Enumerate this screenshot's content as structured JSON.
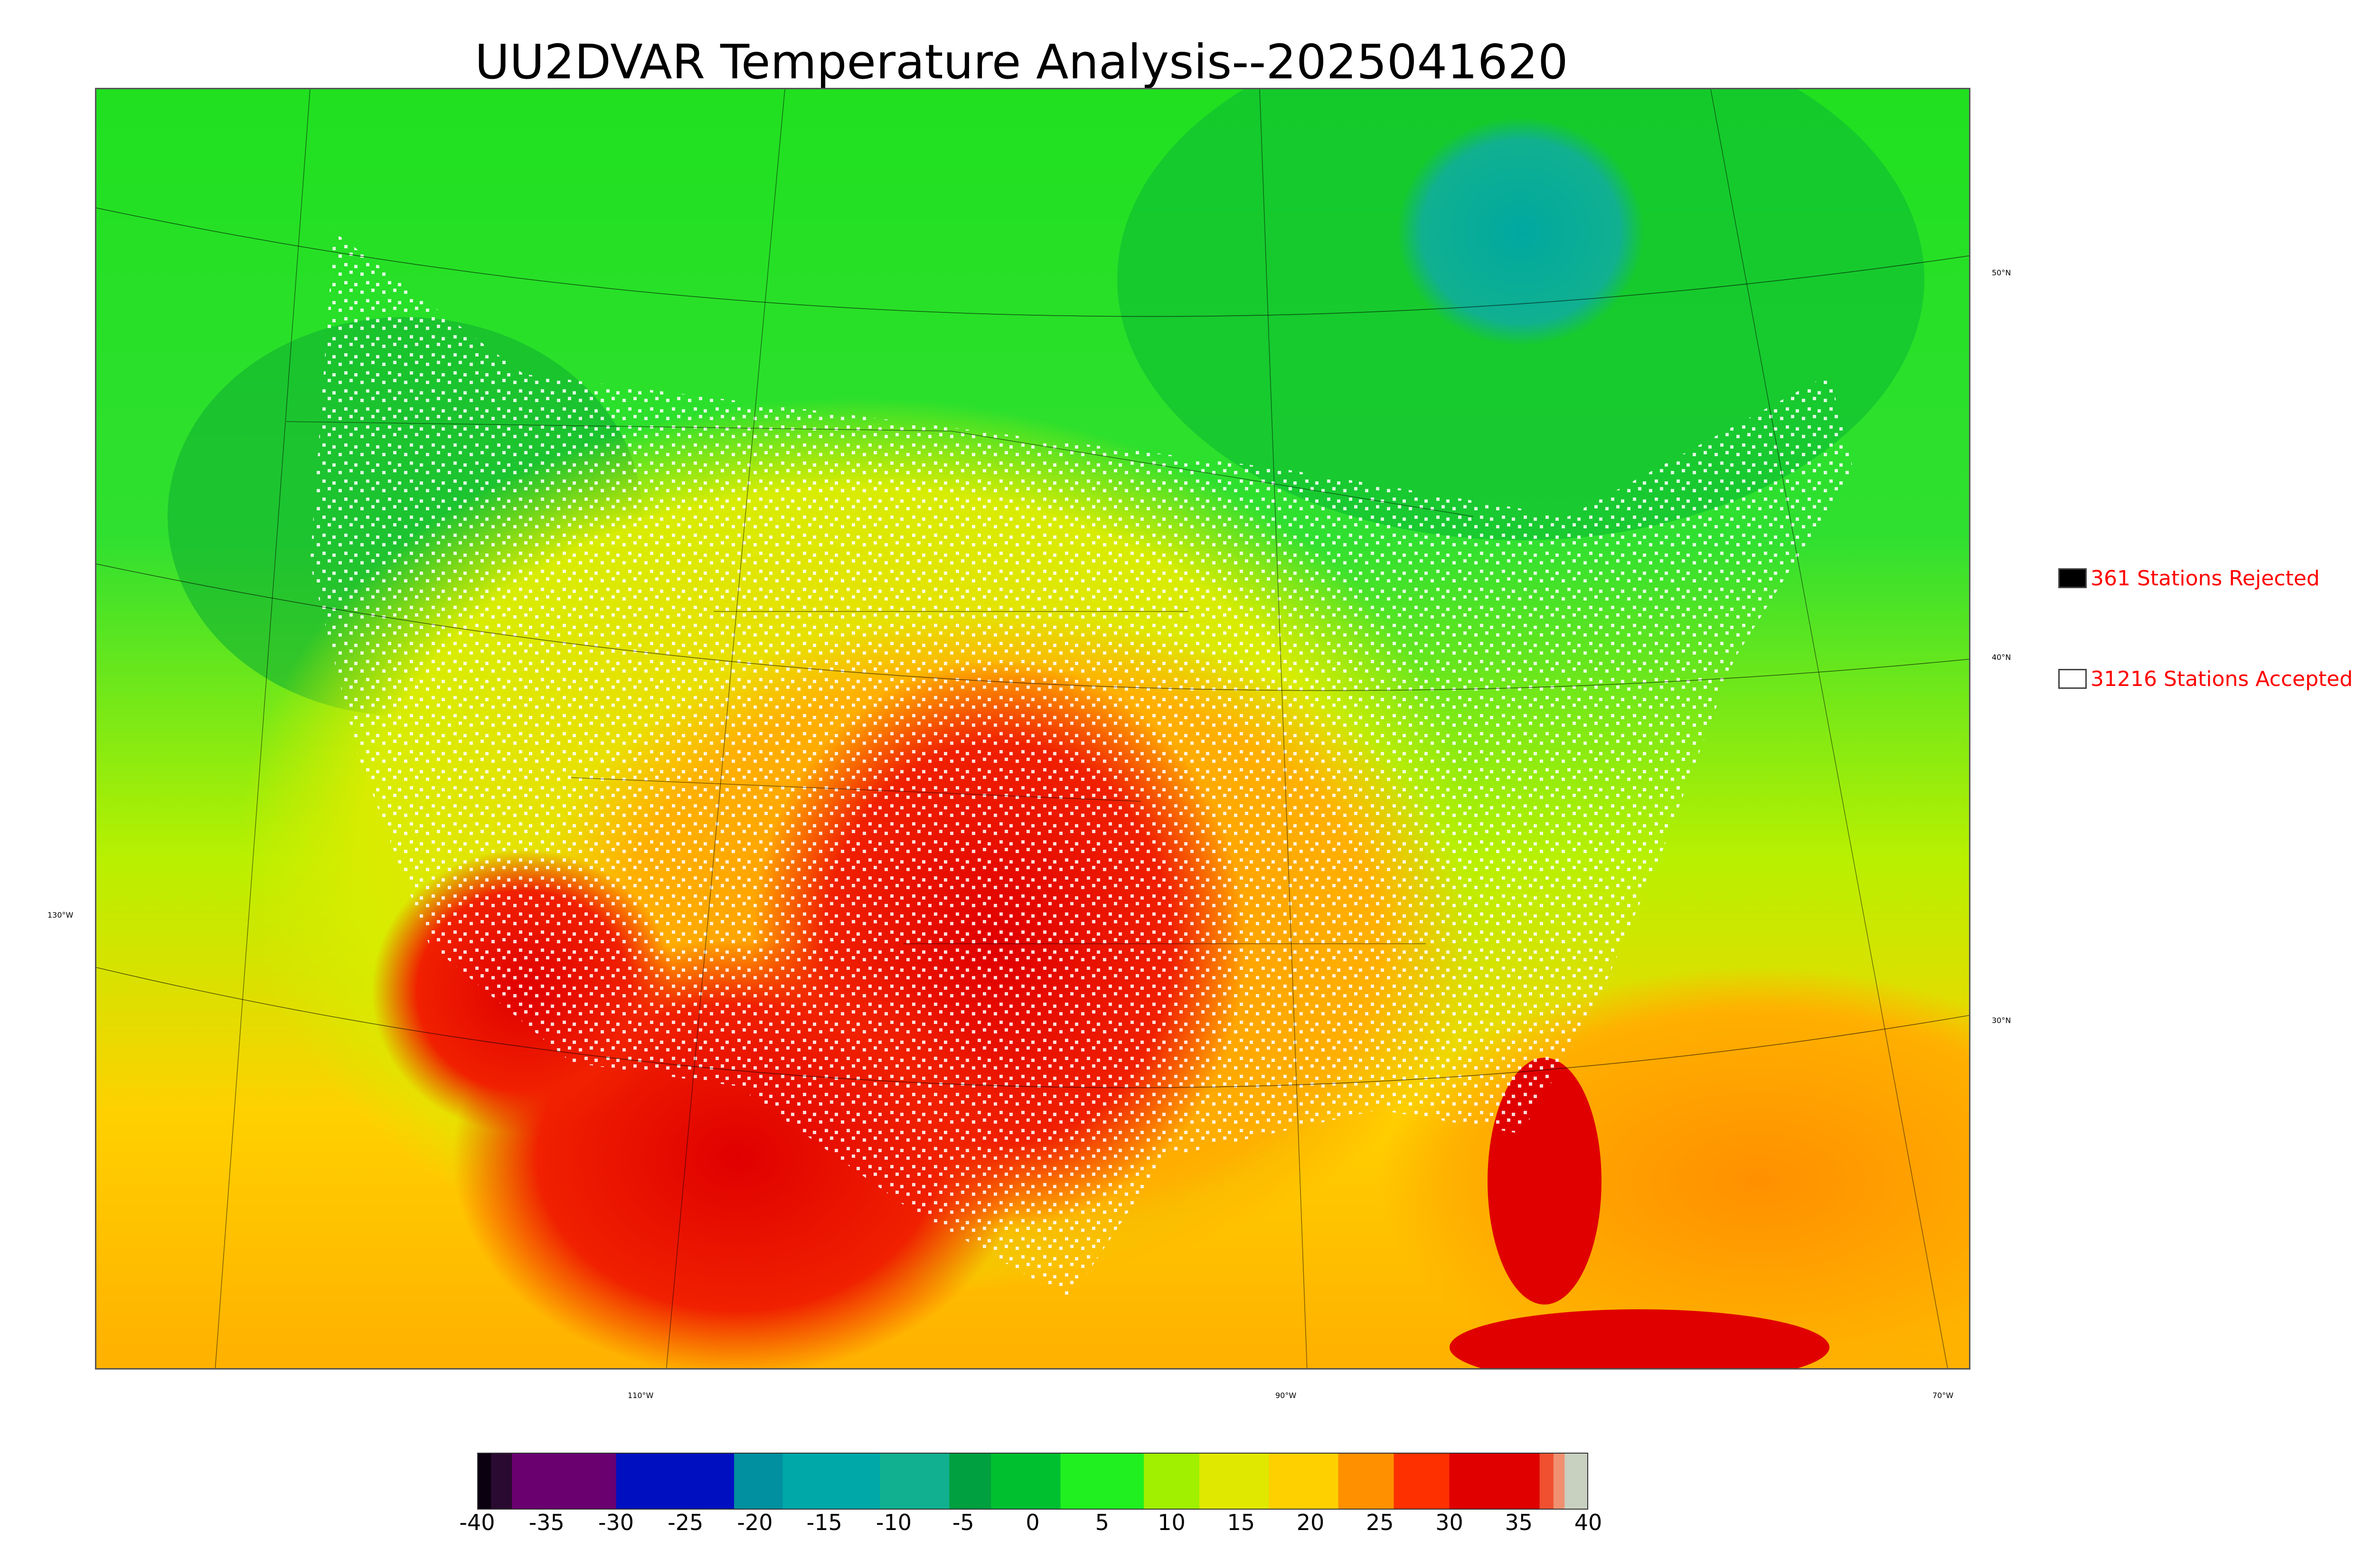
{
  "title": "UU2DVAR Temperature Analysis--2025041620",
  "legend": {
    "rejected": {
      "label": "361 Stations Rejected",
      "swatch_color": "#000000"
    },
    "accepted": {
      "label": "31216 Stations Accepted",
      "swatch_color": "#ffffff"
    }
  },
  "lat_labels": [
    "50°N",
    "40°N",
    "30°N"
  ],
  "lon_labels": [
    "130°W",
    "110°W",
    "90°W",
    "70°W"
  ],
  "colorbar": {
    "ticks": [
      "-40",
      "-35",
      "-30",
      "-25",
      "-20",
      "-15",
      "-10",
      "-5",
      "0",
      "5",
      "10",
      "15",
      "20",
      "25",
      "30",
      "35",
      "40"
    ],
    "tick_values": [
      -40,
      -35,
      -30,
      -25,
      -20,
      -15,
      -10,
      -5,
      0,
      5,
      10,
      15,
      20,
      25,
      30,
      35,
      40
    ],
    "range": [
      -40,
      40
    ],
    "segments": [
      {
        "from": -40,
        "to": -39,
        "color": "#0a0010"
      },
      {
        "from": -39,
        "to": -37.5,
        "color": "#2a0a30"
      },
      {
        "from": -37.5,
        "to": -30,
        "color": "#6a0070"
      },
      {
        "from": -30,
        "to": -21.5,
        "color": "#0010c0"
      },
      {
        "from": -21.5,
        "to": -18,
        "color": "#0090a0"
      },
      {
        "from": -18,
        "to": -11,
        "color": "#00a8a8"
      },
      {
        "from": -11,
        "to": -6,
        "color": "#10b090"
      },
      {
        "from": -6,
        "to": -3,
        "color": "#00a040"
      },
      {
        "from": -3,
        "to": 2,
        "color": "#00c030"
      },
      {
        "from": 2,
        "to": 8,
        "color": "#20f020"
      },
      {
        "from": 8,
        "to": 12,
        "color": "#a0f000"
      },
      {
        "from": 12,
        "to": 17,
        "color": "#e0e800"
      },
      {
        "from": 17,
        "to": 22,
        "color": "#ffd000"
      },
      {
        "from": 22,
        "to": 26,
        "color": "#ff9000"
      },
      {
        "from": 26,
        "to": 30,
        "color": "#ff3000"
      },
      {
        "from": 30,
        "to": 36.5,
        "color": "#e00000"
      },
      {
        "from": 36.5,
        "to": 37.5,
        "color": "#f05030"
      },
      {
        "from": 37.5,
        "to": 38.3,
        "color": "#f09070"
      },
      {
        "from": 38.3,
        "to": 40,
        "color": "#c8d0c0"
      }
    ]
  }
}
